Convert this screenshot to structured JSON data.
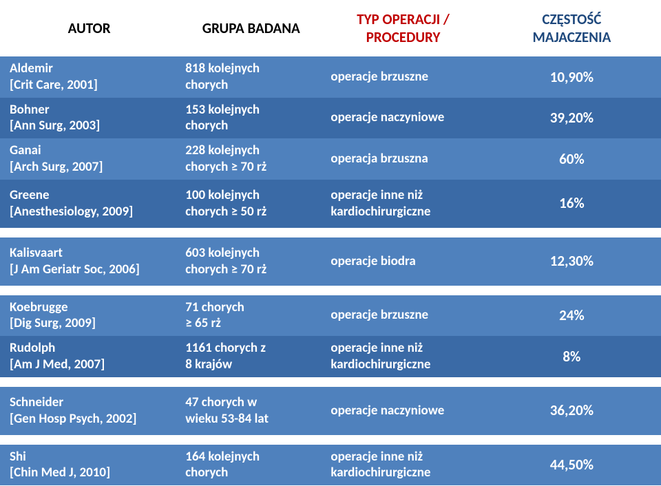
{
  "colors": {
    "row_light": "#4f81bd",
    "row_dark": "#3a6aa6",
    "header_red": "#c00000",
    "header_blue": "#1f497d",
    "text": "#ffffff",
    "background": "#ffffff"
  },
  "font": {
    "family": "Calibri, Arial, sans-serif",
    "header_size": 21,
    "body_size": 19
  },
  "headers": {
    "c1": "AUTOR",
    "c2": "GRUPA BADANA",
    "c3a": "TYP OPERACJI /",
    "c3b": "PROCEDURY",
    "c4a": "CZĘSTOŚĆ",
    "c4b": "MAJACZENIA"
  },
  "groups": [
    {
      "rows": [
        {
          "author_a": "Aldemir",
          "author_b": "[Crit Care, 2001]",
          "group_a": "818 kolejnych",
          "group_b": "chorych",
          "proc_a": "operacje brzuszne",
          "proc_b": "",
          "freq": "10,90%",
          "shade": "light"
        },
        {
          "author_a": "Bohner",
          "author_b": "[Ann Surg, 2003]",
          "group_a": "153 kolejnych",
          "group_b": "chorych",
          "proc_a": "operacje naczyniowe",
          "proc_b": "",
          "freq": "39,20%",
          "shade": "dark"
        },
        {
          "author_a": "Ganai",
          "author_b": "[Arch Surg, 2007]",
          "group_a": "228 kolejnych",
          "group_b": "chorych ≥ 70 rż",
          "proc_a": "operacja brzuszna",
          "proc_b": "",
          "freq": "60%",
          "shade": "light"
        },
        {
          "author_a": "Greene",
          "author_b": "[Anesthesiology, 2009]",
          "group_a": "100 kolejnych",
          "group_b": "chorych ≥ 50 rż",
          "proc_a": "operacje inne niż",
          "proc_b": "kardiochirurgiczne",
          "freq": "16%",
          "shade": "dark",
          "tall": true
        }
      ]
    },
    {
      "rows": [
        {
          "author_a": "Kalisvaart",
          "author_b": "[J Am Geriatr Soc, 2006]",
          "group_a": "603 kolejnych",
          "group_b": "chorych ≥ 70 rż",
          "proc_a": "operacje biodra",
          "proc_b": "",
          "freq": "12,30%",
          "shade": "light",
          "tall": true
        }
      ]
    },
    {
      "rows": [
        {
          "author_a": "Koebrugge",
          "author_b": "[Dig Surg, 2009]",
          "group_a": "71 chorych",
          "group_b": "≥ 65 rż",
          "proc_a": "operacje brzuszne",
          "proc_b": "",
          "freq": "24%",
          "shade": "light"
        },
        {
          "author_a": "Rudolph",
          "author_b": "[Am J Med, 2007]",
          "group_a": "1161 chorych z",
          "group_b": "8 krajów",
          "proc_a": "operacje inne niż",
          "proc_b": "kardiochirurgiczne",
          "freq": "8%",
          "shade": "dark"
        }
      ]
    },
    {
      "rows": [
        {
          "author_a": "Schneider",
          "author_b": "[Gen Hosp Psych, 2002]",
          "group_a": "47 chorych w",
          "group_b": "wieku 53-84 lat",
          "proc_a": "operacje naczyniowe",
          "proc_b": "",
          "freq": "36,20%",
          "shade": "light",
          "tall": true
        }
      ]
    },
    {
      "rows": [
        {
          "author_a": "Shi",
          "author_b": "[Chin Med J, 2010]",
          "group_a": "164 kolejnych",
          "group_b": "chorych",
          "proc_a": "operacje inne niż",
          "proc_b": "kardiochirurgiczne",
          "freq": "44,50%",
          "shade": "light"
        }
      ]
    }
  ]
}
